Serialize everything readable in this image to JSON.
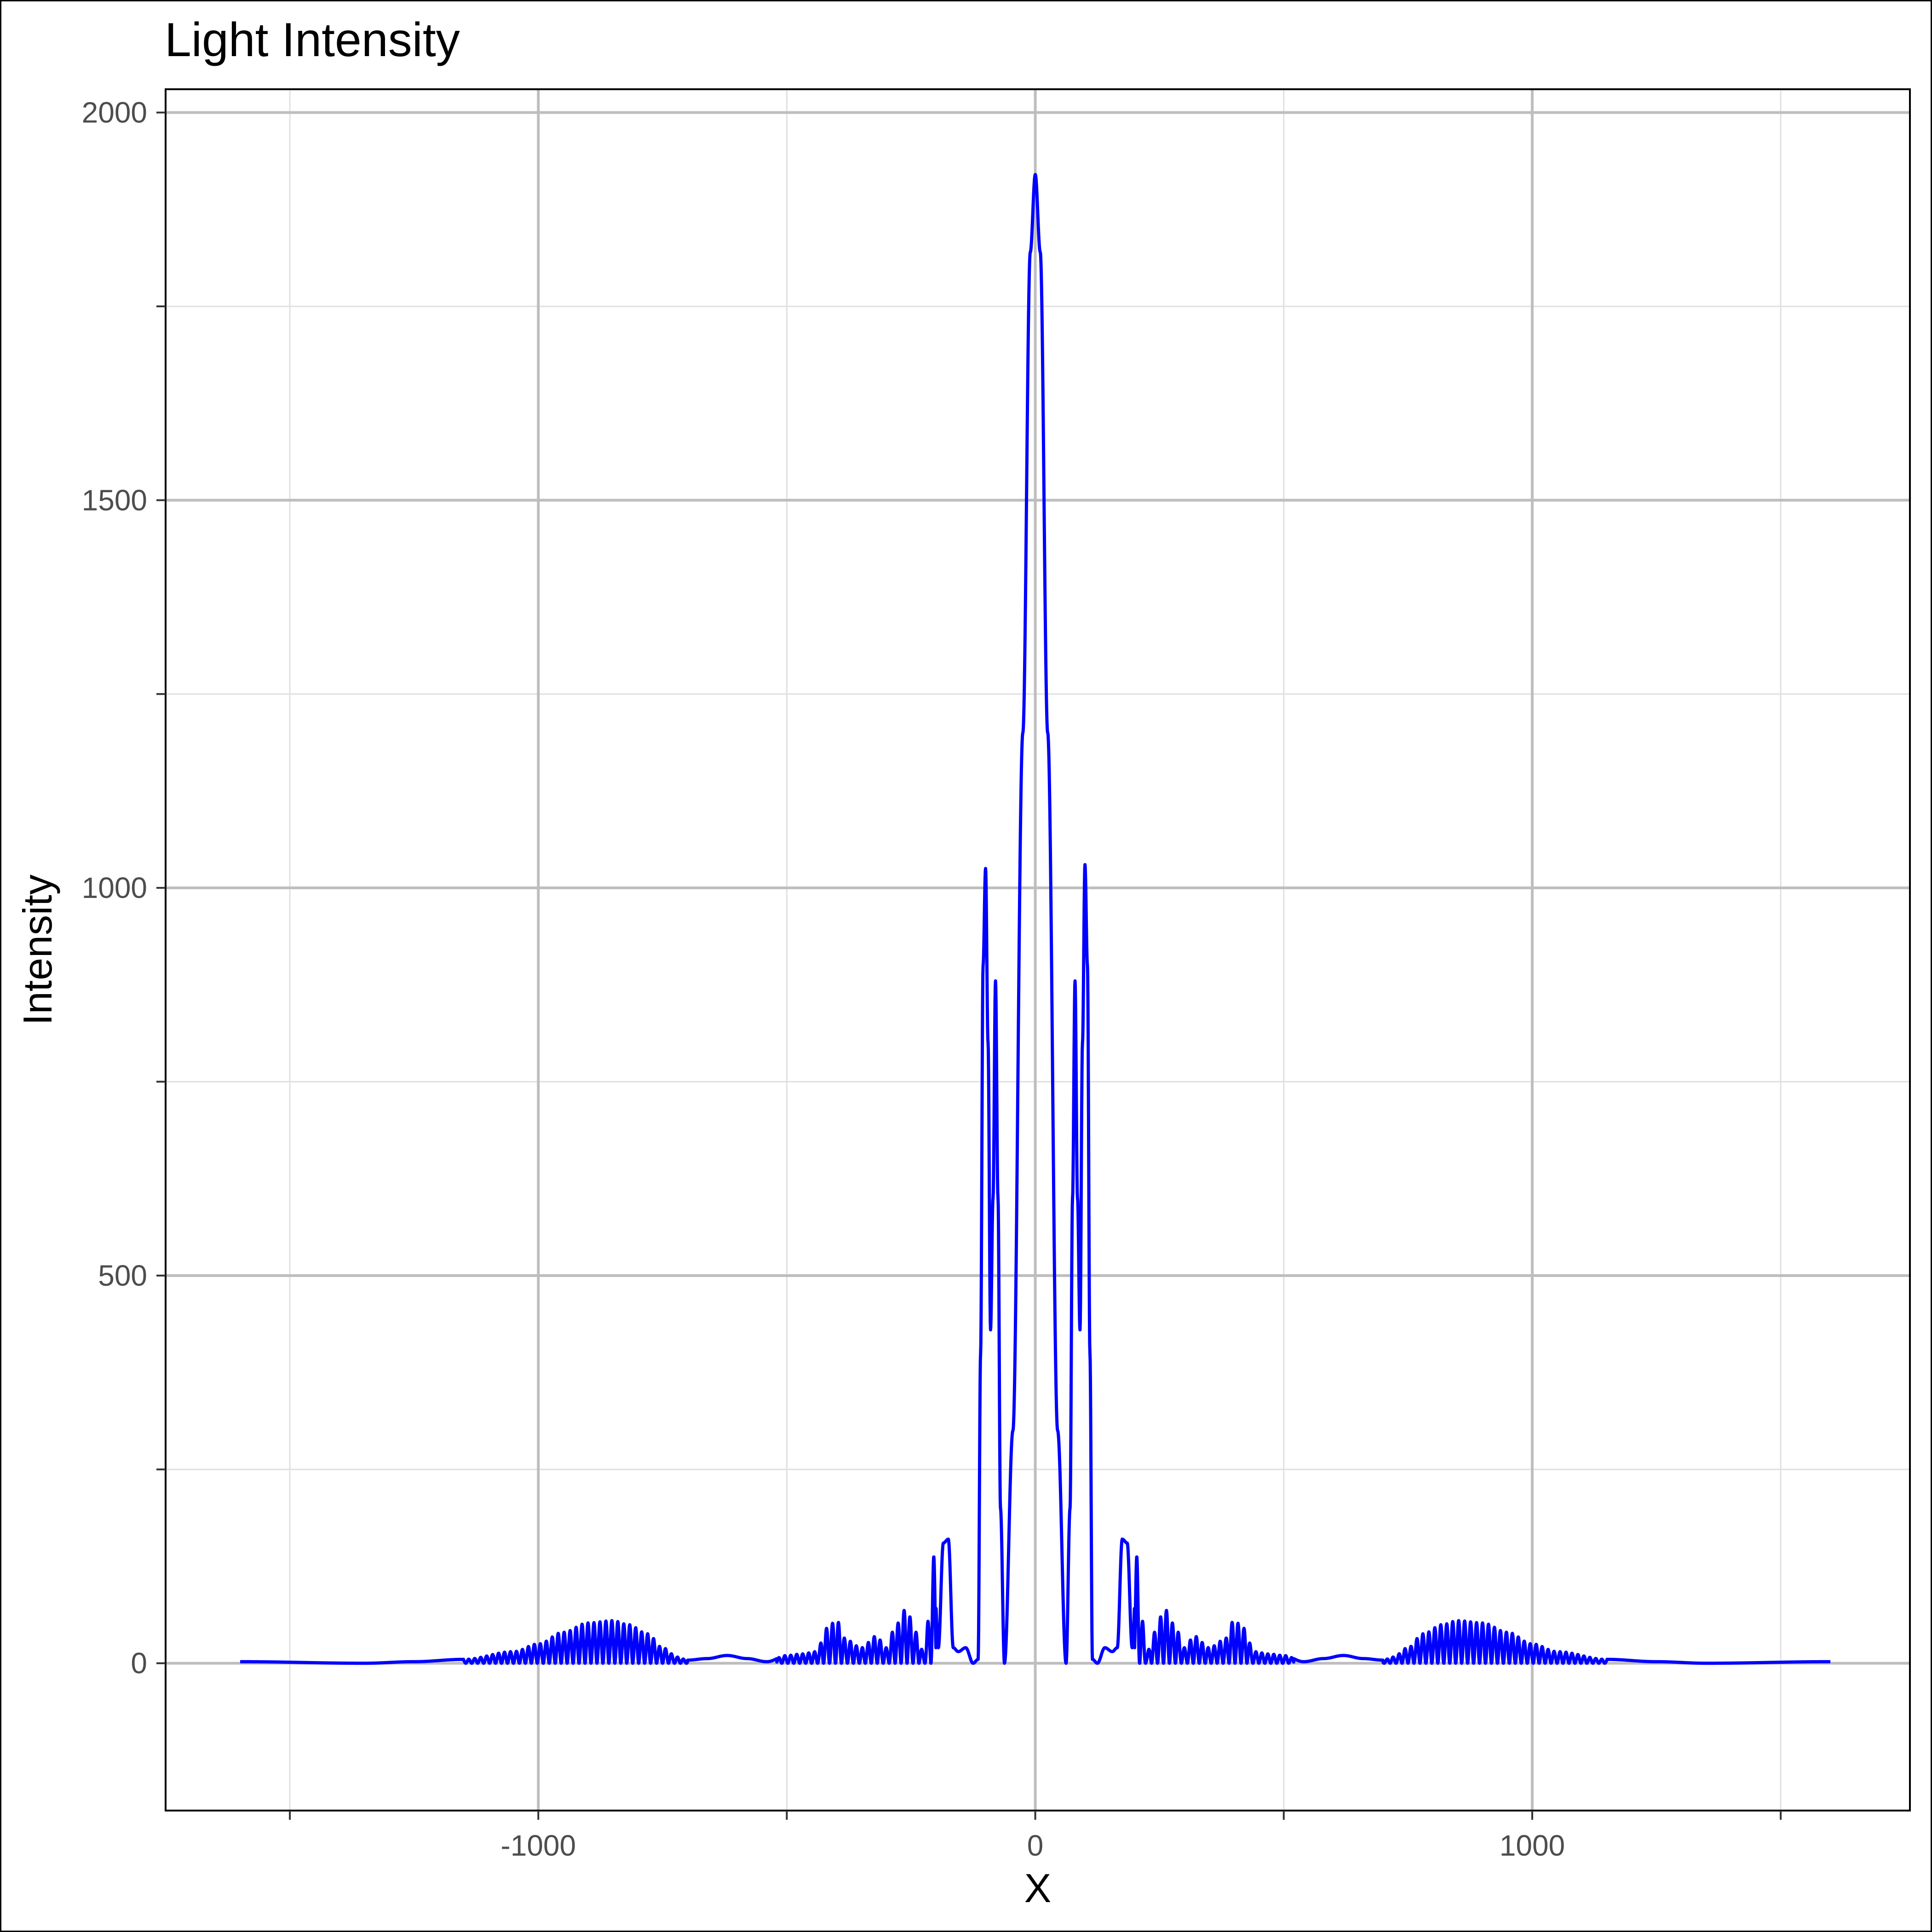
{
  "chart_data": {
    "type": "line",
    "title": "Light Intensity",
    "xlabel": "X",
    "ylabel": "Intensity",
    "xlim": [
      -1750,
      1760
    ],
    "ylim": [
      -190,
      2030
    ],
    "x_ticks": [
      -1000,
      0,
      1000
    ],
    "x_tick_labels": [
      "-1000",
      "0",
      "1000"
    ],
    "x_minor_ticks": [
      -1500,
      -500,
      500,
      1500
    ],
    "y_ticks": [
      0,
      500,
      1000,
      1500,
      2000
    ],
    "y_tick_labels": [
      "0",
      "500",
      "1000",
      "1500",
      "2000"
    ],
    "y_minor_ticks": [
      250,
      750,
      1250,
      1750
    ],
    "grid": true,
    "line_color": "#0000ff",
    "x_range": [
      -1600,
      1600
    ],
    "envelope": {
      "x": [
        -1600,
        -1350,
        -1250,
        -1150,
        -1050,
        -1000,
        -950,
        -900,
        -850,
        -820,
        -780,
        -750,
        -720,
        -700,
        -660,
        -620,
        -580,
        -540,
        -500,
        -470,
        -440,
        -420,
        -400,
        -380,
        -350,
        -320,
        -300,
        -280,
        -260,
        -240,
        -225,
        -215,
        -205,
        -195,
        -185,
        -175,
        -165,
        -155,
        -140,
        -125,
        -115,
        -110,
        -105,
        -100,
        -95,
        -90,
        -85,
        -80,
        -75,
        -70,
        -62,
        -45,
        -25,
        -10,
        0,
        10,
        25,
        45,
        62,
        70,
        75,
        80,
        85,
        90,
        95,
        100,
        105,
        110,
        115,
        125,
        140,
        155,
        165,
        175,
        185,
        195,
        205,
        215,
        225,
        240,
        260,
        280,
        300,
        320,
        350,
        380,
        400,
        420,
        440,
        470,
        500,
        540,
        580,
        620,
        660,
        700,
        720,
        750,
        780,
        820,
        850,
        900,
        950,
        1000,
        1050,
        1150,
        1250,
        1350,
        1600
      ],
      "y": [
        2,
        0,
        2,
        5,
        15,
        25,
        40,
        52,
        55,
        50,
        38,
        20,
        8,
        4,
        6,
        10,
        6,
        2,
        10,
        12,
        15,
        45,
        55,
        30,
        20,
        35,
        20,
        50,
        70,
        40,
        15,
        55,
        140,
        20,
        155,
        160,
        20,
        15,
        20,
        0,
        5,
        400,
        900,
        1025,
        800,
        430,
        600,
        880,
        600,
        200,
        0,
        300,
        1200,
        1820,
        1920,
        1820,
        1200,
        300,
        0,
        200,
        600,
        880,
        600,
        430,
        800,
        1030,
        900,
        400,
        5,
        0,
        20,
        15,
        20,
        160,
        155,
        20,
        140,
        55,
        15,
        40,
        70,
        50,
        20,
        35,
        20,
        30,
        55,
        45,
        15,
        12,
        10,
        2,
        6,
        10,
        6,
        4,
        8,
        20,
        38,
        50,
        55,
        52,
        40,
        25,
        15,
        5,
        2,
        0,
        2
      ],
      "fringe_period": 12,
      "fringe_x_ranges": [
        [
          -1150,
          -700
        ],
        [
          -520,
          -200
        ],
        [
          200,
          520
        ],
        [
          700,
          1150
        ]
      ]
    }
  }
}
